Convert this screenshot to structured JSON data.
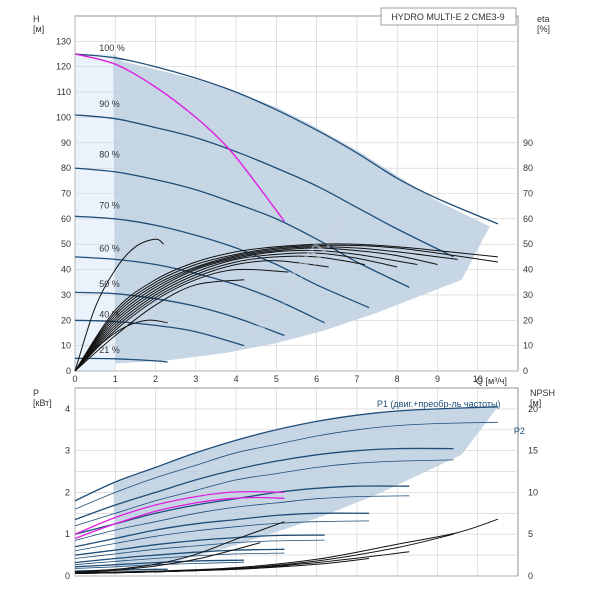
{
  "chart_data": [
    {
      "type": "line",
      "title": "HYDRO MULTI-E 2 CME3-9",
      "ylabel_left": "H\n[м]",
      "ylabel_right": "eta\n[%]",
      "xlabel": "Q [м³/ч]",
      "xlim": [
        0,
        11
      ],
      "ylim": [
        0,
        140
      ],
      "x_ticks": [
        0,
        1,
        2,
        3,
        4,
        5,
        6,
        7,
        8,
        9,
        10
      ],
      "y_ticks_left": [
        0,
        10,
        20,
        30,
        40,
        50,
        60,
        70,
        80,
        90,
        100,
        110,
        120,
        130
      ],
      "y_ticks_right": [
        0,
        10,
        20,
        30,
        40,
        50,
        60,
        70,
        80,
        90
      ],
      "grid": true,
      "speed_labels": [
        {
          "text": "100 %",
          "x": 1.0,
          "y": 125
        },
        {
          "text": "90 %",
          "x": 1.0,
          "y": 103
        },
        {
          "text": "80 %",
          "x": 1.0,
          "y": 83
        },
        {
          "text": "70 %",
          "x": 1.0,
          "y": 63
        },
        {
          "text": "60 %",
          "x": 1.0,
          "y": 46
        },
        {
          "text": "50 %",
          "x": 1.0,
          "y": 32
        },
        {
          "text": "40 %",
          "x": 1.0,
          "y": 20
        },
        {
          "text": "21 %",
          "x": 1.0,
          "y": 6
        }
      ],
      "envelope_region": {
        "x": [
          0.95,
          1.2,
          2,
          3,
          4,
          5,
          6,
          7,
          8,
          9,
          10.3,
          9.6,
          7.5,
          6.2,
          5,
          3.7,
          2.2,
          1.0
        ],
        "y": [
          125,
          122,
          119,
          115,
          110,
          104,
          96,
          87,
          77,
          67,
          57,
          36,
          23,
          16,
          11,
          7,
          4,
          3
        ]
      },
      "series": [
        {
          "speed": "100 %",
          "x": [
            0,
            1,
            2,
            3,
            4,
            5,
            6,
            7,
            8,
            9,
            10.5
          ],
          "y": [
            125,
            123.5,
            120,
            115.5,
            110,
            103,
            95,
            86,
            76,
            68,
            58
          ]
        },
        {
          "speed": "90 %",
          "x": [
            0,
            1,
            2,
            3,
            4,
            5,
            6,
            7,
            8,
            9.4
          ],
          "y": [
            101,
            99.5,
            96,
            92,
            86.5,
            80,
            73,
            64.5,
            56,
            45
          ]
        },
        {
          "speed": "80 %",
          "x": [
            0,
            1,
            2,
            3,
            4,
            5,
            6,
            7,
            8.3
          ],
          "y": [
            80,
            78.5,
            75.5,
            71.5,
            66,
            60,
            52,
            43,
            33
          ]
        },
        {
          "speed": "70 %",
          "x": [
            0,
            1,
            2,
            3,
            4,
            5,
            6,
            7.3
          ],
          "y": [
            61,
            60,
            57.5,
            53.5,
            48.5,
            42,
            34,
            25
          ]
        },
        {
          "speed": "60 %",
          "x": [
            0,
            1,
            2,
            3,
            4,
            5,
            6.2
          ],
          "y": [
            45,
            44,
            42,
            38.5,
            34,
            28,
            19
          ]
        },
        {
          "speed": "50 %",
          "x": [
            0,
            1,
            2,
            3,
            4,
            5.2
          ],
          "y": [
            31,
            30.5,
            28.5,
            25.5,
            21,
            14
          ]
        },
        {
          "speed": "40 %",
          "x": [
            0,
            1,
            2,
            3,
            4.2
          ],
          "y": [
            20,
            19.5,
            18,
            15.5,
            10
          ]
        },
        {
          "speed": "21 %",
          "x": [
            0,
            1,
            2,
            2.3
          ],
          "y": [
            5,
            4.8,
            4,
            3.5
          ]
        }
      ],
      "selected_curve": {
        "x": [
          0,
          1,
          2,
          3,
          3.8,
          4.5,
          5.2
        ],
        "y": [
          125,
          121,
          112,
          100,
          88,
          74,
          59
        ]
      },
      "eta_curves": [
        {
          "x": [
            0,
            1,
            2,
            3,
            4,
            5,
            6,
            7,
            8,
            9,
            10.5
          ],
          "y": [
            0,
            24,
            36,
            43,
            47,
            49,
            50,
            50,
            49,
            47.5,
            45
          ]
        },
        {
          "x": [
            0,
            1,
            2,
            3,
            4,
            5,
            6,
            7,
            8,
            9,
            10.5
          ],
          "y": [
            0,
            23,
            35,
            42,
            46,
            48.5,
            49.5,
            49.5,
            48.5,
            46.5,
            43
          ]
        },
        {
          "x": [
            0,
            1,
            2,
            3,
            4,
            5,
            6,
            7,
            8,
            9.5
          ],
          "y": [
            0,
            22,
            34,
            41,
            45.5,
            48,
            49,
            48.5,
            47,
            44
          ]
        },
        {
          "x": [
            0,
            1,
            2,
            3,
            4,
            5,
            6,
            7,
            8,
            9
          ],
          "y": [
            0,
            21,
            33,
            40.5,
            45,
            47.5,
            48.5,
            47.5,
            45.5,
            42
          ]
        },
        {
          "x": [
            0,
            1,
            2,
            3,
            4,
            5,
            6,
            7,
            8.5
          ],
          "y": [
            0,
            20,
            32,
            40,
            44.5,
            47,
            47.5,
            46,
            42
          ]
        },
        {
          "x": [
            0,
            1,
            2,
            3,
            4,
            5,
            6,
            7,
            8
          ],
          "y": [
            0,
            19,
            31,
            39,
            44,
            46,
            46.5,
            44.5,
            41
          ]
        },
        {
          "x": [
            0,
            1,
            2,
            3,
            4,
            5,
            6,
            7.2
          ],
          "y": [
            0,
            18,
            30,
            38,
            43,
            45,
            45,
            42
          ]
        },
        {
          "x": [
            0,
            1,
            2,
            3,
            4,
            5,
            6.3
          ],
          "y": [
            0,
            17,
            29,
            37,
            42,
            43.5,
            41
          ]
        },
        {
          "x": [
            0,
            1,
            2,
            3,
            4,
            5.3
          ],
          "y": [
            0,
            16,
            28,
            36,
            40,
            39
          ]
        },
        {
          "x": [
            0,
            1,
            2,
            3,
            4.2
          ],
          "y": [
            0,
            14,
            26,
            34,
            36
          ]
        },
        {
          "x": [
            0,
            0.5,
            1,
            1.5,
            2,
            2.2
          ],
          "y": [
            0,
            25,
            40,
            49,
            52,
            50
          ]
        },
        {
          "x": [
            0,
            0.6,
            1.2,
            1.8,
            2.3
          ],
          "y": [
            0,
            10,
            17,
            20,
            19
          ]
        }
      ]
    },
    {
      "type": "line",
      "ylabel_left": "P\n[кВт]",
      "ylabel_right": "NPSH\n[м]",
      "xlim": [
        0,
        11
      ],
      "ylim": [
        0,
        4.5
      ],
      "y_ticks_left": [
        0,
        1,
        2,
        3,
        4
      ],
      "y_ticks_right": [
        0,
        5,
        10,
        15,
        20
      ],
      "grid": true,
      "legend_labels": [
        {
          "text": "P1 (двиг.+преобр-ль частоты)",
          "x": 7.0,
          "y": 4.05
        },
        {
          "text": "P2",
          "x": 10.4,
          "y": 3.4
        }
      ],
      "envelope_region": {
        "x": [
          0.95,
          1,
          2,
          3,
          4,
          5,
          6,
          7,
          8,
          9,
          10.5,
          9.6,
          7.5,
          6.2,
          5,
          3.7,
          2.3,
          1.0
        ],
        "y": [
          2.2,
          2.25,
          2.6,
          2.95,
          3.25,
          3.5,
          3.7,
          3.85,
          3.95,
          4.0,
          4.05,
          2.9,
          1.95,
          1.45,
          1.05,
          0.65,
          0.3,
          0.2
        ]
      },
      "p1_series": [
        {
          "x": [
            0,
            1,
            2,
            3,
            4,
            5,
            6,
            7,
            8,
            9,
            10.5
          ],
          "y": [
            1.8,
            2.25,
            2.6,
            2.95,
            3.25,
            3.5,
            3.7,
            3.85,
            3.95,
            4.0,
            4.05
          ]
        },
        {
          "x": [
            0,
            1,
            2,
            3,
            4,
            5,
            6,
            7,
            8,
            9.4
          ],
          "y": [
            1.35,
            1.7,
            2.0,
            2.3,
            2.55,
            2.75,
            2.9,
            3.0,
            3.05,
            3.05
          ]
        },
        {
          "x": [
            0,
            1,
            2,
            3,
            4,
            5,
            6,
            7,
            8.3
          ],
          "y": [
            1.0,
            1.25,
            1.5,
            1.7,
            1.85,
            2.0,
            2.1,
            2.15,
            2.15
          ]
        },
        {
          "x": [
            0,
            1,
            2,
            3,
            4,
            5,
            6,
            7.3
          ],
          "y": [
            0.7,
            0.9,
            1.1,
            1.25,
            1.35,
            1.45,
            1.5,
            1.5
          ]
        },
        {
          "x": [
            0,
            1,
            2,
            3,
            4,
            5,
            6.2
          ],
          "y": [
            0.5,
            0.62,
            0.75,
            0.85,
            0.92,
            0.97,
            0.98
          ]
        },
        {
          "x": [
            0,
            1,
            2,
            3,
            4,
            5.2
          ],
          "y": [
            0.32,
            0.42,
            0.5,
            0.57,
            0.62,
            0.64
          ]
        },
        {
          "x": [
            0,
            1,
            2,
            3,
            4.2
          ],
          "y": [
            0.22,
            0.27,
            0.32,
            0.36,
            0.38
          ]
        },
        {
          "x": [
            0,
            1,
            2,
            2.3
          ],
          "y": [
            0.12,
            0.14,
            0.16,
            0.16
          ]
        }
      ],
      "p2_series": [
        {
          "x": [
            0,
            1,
            2,
            3,
            4,
            5,
            6,
            7,
            8,
            9,
            10.5
          ],
          "y": [
            1.6,
            2.0,
            2.35,
            2.65,
            2.95,
            3.15,
            3.35,
            3.5,
            3.6,
            3.65,
            3.68
          ]
        },
        {
          "x": [
            0,
            1,
            2,
            3,
            4,
            5,
            6,
            7,
            8,
            9.4
          ],
          "y": [
            1.2,
            1.5,
            1.8,
            2.05,
            2.3,
            2.45,
            2.6,
            2.7,
            2.75,
            2.78
          ]
        },
        {
          "x": [
            0,
            1,
            2,
            3,
            4,
            5,
            6,
            7,
            8.3
          ],
          "y": [
            0.85,
            1.1,
            1.3,
            1.5,
            1.65,
            1.75,
            1.85,
            1.9,
            1.92
          ]
        },
        {
          "x": [
            0,
            1,
            2,
            3,
            4,
            5,
            6,
            7.3
          ],
          "y": [
            0.6,
            0.78,
            0.95,
            1.08,
            1.18,
            1.26,
            1.3,
            1.32
          ]
        },
        {
          "x": [
            0,
            1,
            2,
            3,
            4,
            5,
            6.2
          ],
          "y": [
            0.42,
            0.53,
            0.64,
            0.72,
            0.8,
            0.84,
            0.86
          ]
        },
        {
          "x": [
            0,
            1,
            2,
            3,
            4,
            5.2
          ],
          "y": [
            0.27,
            0.35,
            0.42,
            0.48,
            0.53,
            0.55
          ]
        },
        {
          "x": [
            0,
            1,
            2,
            3,
            4.2
          ],
          "y": [
            0.18,
            0.22,
            0.27,
            0.3,
            0.33
          ]
        }
      ],
      "selected_p1": {
        "x": [
          0,
          1,
          2,
          3,
          3.8,
          4.5,
          5.2
        ],
        "y": [
          1.0,
          1.4,
          1.7,
          1.9,
          2.0,
          2.02,
          2.0
        ]
      },
      "selected_p2": {
        "x": [
          0,
          1,
          2,
          3,
          3.8,
          4.5,
          5.2
        ],
        "y": [
          0.9,
          1.25,
          1.55,
          1.75,
          1.85,
          1.88,
          1.86
        ]
      },
      "npsh_curves": [
        {
          "x": [
            0,
            2,
            4,
            6,
            8,
            9.5,
            10.5
          ],
          "y": [
            0.4,
            0.6,
            1.0,
            2.0,
            3.8,
            5.2,
            6.8
          ]
        },
        {
          "x": [
            0,
            2,
            4,
            6,
            8,
            9.4
          ],
          "y": [
            0.3,
            0.5,
            0.9,
            1.8,
            3.4,
            5.0
          ]
        },
        {
          "x": [
            0,
            2,
            4,
            6,
            8.3
          ],
          "y": [
            0.3,
            0.5,
            0.9,
            1.6,
            2.9
          ]
        },
        {
          "x": [
            0,
            2,
            4,
            6,
            7.3
          ],
          "y": [
            0.3,
            0.5,
            0.8,
            1.4,
            2.1
          ]
        },
        {
          "x": [
            0,
            2,
            4,
            5.3
          ],
          "y": [
            0.3,
            0.5,
            0.8,
            1.2
          ]
        },
        {
          "x": [
            0,
            1,
            2,
            3,
            4,
            5.2
          ],
          "y": [
            0.5,
            0.8,
            1.4,
            2.6,
            4.4,
            6.5
          ]
        },
        {
          "x": [
            0,
            1,
            2,
            3,
            4,
            4.6
          ],
          "y": [
            0.4,
            0.7,
            1.2,
            2.0,
            3.2,
            4.0
          ]
        }
      ]
    }
  ],
  "watermark": "vlk21.com.ua"
}
